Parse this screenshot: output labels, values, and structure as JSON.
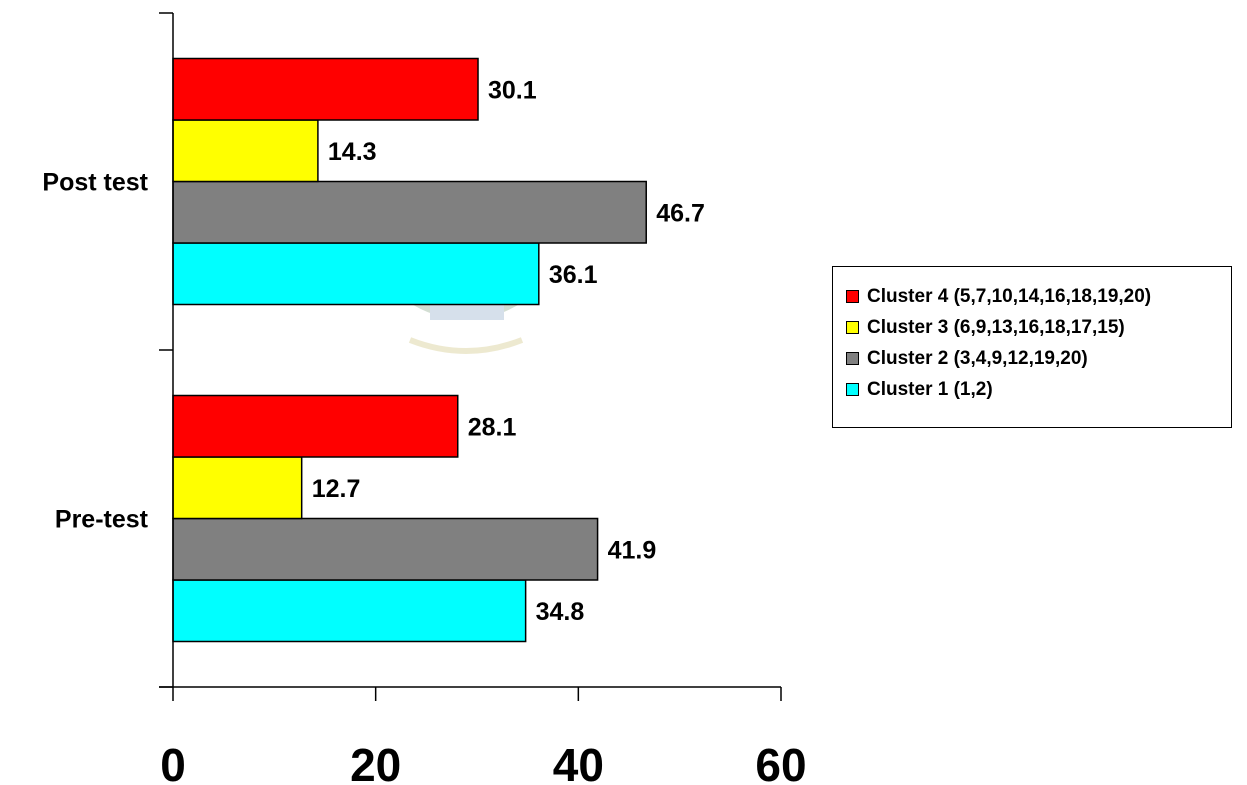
{
  "chart_data": {
    "type": "bar",
    "orientation": "horizontal",
    "title": "",
    "xlabel": "",
    "ylabel": "",
    "categories": [
      "Pre-test",
      "Post test"
    ],
    "series": [
      {
        "name": "Cluster 1 (1,2)",
        "color": "#00ffff",
        "values": [
          34.8,
          36.1
        ],
        "labels": [
          "34.8",
          "36.1"
        ]
      },
      {
        "name": "Cluster 2 (3,4,9,12,19,20)",
        "color": "#808080",
        "values": [
          41.9,
          46.7
        ],
        "labels": [
          "41.9",
          "46.7"
        ]
      },
      {
        "name": "Cluster 3 (6,9,13,16,18,17,15)",
        "color": "#ffff00",
        "values": [
          12.7,
          14.3
        ],
        "labels": [
          "12.7",
          "14.3"
        ]
      },
      {
        "name": "Cluster 4 (5,7,10,14,16,18,19,20)",
        "color": "#ff0000",
        "values": [
          28.1,
          30.1
        ],
        "labels": [
          "28.1",
          "30.1"
        ]
      }
    ],
    "xlim": [
      0,
      60
    ],
    "xticks": [
      "0",
      "20",
      "40",
      "60"
    ],
    "grid": false,
    "legend_position": "right"
  }
}
